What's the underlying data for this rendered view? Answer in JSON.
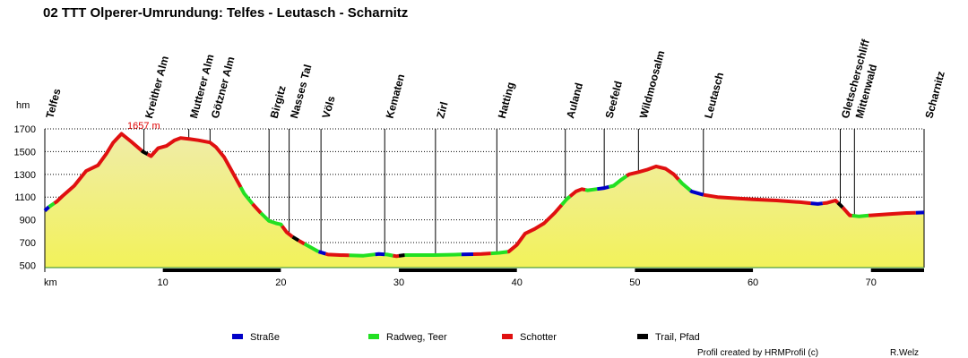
{
  "title": "02 TTT Olperer-Umrundung: Telfes - Leutasch - Scharnitz",
  "credit": "Profil created by HRMProfil (c)",
  "author": "R.Welz",
  "chart_data": {
    "type": "area",
    "ylabel": "hm",
    "xlabel": "km",
    "xlim": [
      0,
      74.5
    ],
    "ylim": [
      480,
      1700
    ],
    "y_ticks": [
      500,
      700,
      900,
      1100,
      1300,
      1500,
      1700
    ],
    "y_grid": [
      700,
      900,
      1100,
      1300,
      1500,
      1700
    ],
    "x_ticks": [
      10,
      20,
      30,
      40,
      50,
      60,
      70
    ],
    "peak_label": "1657 m",
    "peak": {
      "x": 6.5,
      "y": 1657
    },
    "waypoints": [
      {
        "name": "Telfes",
        "x": 0
      },
      {
        "name": "Kreither Alm",
        "x": 8.4
      },
      {
        "name": "Mutterer Alm",
        "x": 12.2
      },
      {
        "name": "Götzner Alm",
        "x": 14.0
      },
      {
        "name": "Birgitz",
        "x": 19.0
      },
      {
        "name": "Nasses Tal",
        "x": 20.7
      },
      {
        "name": "Völs",
        "x": 23.4
      },
      {
        "name": "Kematen",
        "x": 28.8
      },
      {
        "name": "Zirl",
        "x": 33.1
      },
      {
        "name": "Hatting",
        "x": 38.3
      },
      {
        "name": "Auland",
        "x": 44.1
      },
      {
        "name": "Seefeld",
        "x": 47.4
      },
      {
        "name": "Wildmoosalm",
        "x": 50.3
      },
      {
        "name": "Leutasch",
        "x": 55.8
      },
      {
        "name": "Gletscherschliff",
        "x": 67.4
      },
      {
        "name": "Mittenwald",
        "x": 68.6
      },
      {
        "name": "Scharnitz",
        "x": 74.5
      }
    ],
    "profile": [
      [
        0,
        980
      ],
      [
        0.3,
        1010
      ],
      [
        1,
        1060
      ],
      [
        1.5,
        1110
      ],
      [
        2.5,
        1200
      ],
      [
        3.5,
        1330
      ],
      [
        4.5,
        1380
      ],
      [
        5.2,
        1480
      ],
      [
        5.8,
        1580
      ],
      [
        6.5,
        1657
      ],
      [
        7.3,
        1590
      ],
      [
        8.3,
        1500
      ],
      [
        9.0,
        1460
      ],
      [
        9.6,
        1530
      ],
      [
        10.3,
        1550
      ],
      [
        11.0,
        1600
      ],
      [
        11.5,
        1620
      ],
      [
        12.3,
        1610
      ],
      [
        13.0,
        1600
      ],
      [
        14.0,
        1580
      ],
      [
        14.5,
        1540
      ],
      [
        15.2,
        1450
      ],
      [
        16.0,
        1300
      ],
      [
        16.9,
        1130
      ],
      [
        17.6,
        1040
      ],
      [
        18.3,
        960
      ],
      [
        19.0,
        890
      ],
      [
        19.6,
        870
      ],
      [
        20.0,
        860
      ],
      [
        20.5,
        790
      ],
      [
        21.0,
        750
      ],
      [
        21.8,
        700
      ],
      [
        22.5,
        660
      ],
      [
        23.2,
        620
      ],
      [
        24.0,
        595
      ],
      [
        25.0,
        590
      ],
      [
        27.0,
        585
      ],
      [
        28.3,
        600
      ],
      [
        29.0,
        595
      ],
      [
        29.8,
        580
      ],
      [
        30.5,
        590
      ],
      [
        33.0,
        590
      ],
      [
        35.0,
        595
      ],
      [
        37.0,
        600
      ],
      [
        38.5,
        610
      ],
      [
        39.3,
        620
      ],
      [
        40.0,
        680
      ],
      [
        40.7,
        780
      ],
      [
        41.5,
        820
      ],
      [
        42.3,
        870
      ],
      [
        43.2,
        960
      ],
      [
        44.2,
        1080
      ],
      [
        45.0,
        1150
      ],
      [
        45.5,
        1170
      ],
      [
        46.0,
        1160
      ],
      [
        47.4,
        1180
      ],
      [
        48.2,
        1200
      ],
      [
        48.8,
        1250
      ],
      [
        49.5,
        1300
      ],
      [
        50.3,
        1320
      ],
      [
        51.0,
        1340
      ],
      [
        51.8,
        1370
      ],
      [
        52.6,
        1350
      ],
      [
        53.3,
        1300
      ],
      [
        54.0,
        1220
      ],
      [
        54.8,
        1150
      ],
      [
        55.8,
        1120
      ],
      [
        57.0,
        1100
      ],
      [
        58.5,
        1090
      ],
      [
        60.0,
        1080
      ],
      [
        62.0,
        1070
      ],
      [
        64.0,
        1055
      ],
      [
        65.5,
        1040
      ],
      [
        66.3,
        1050
      ],
      [
        67.0,
        1070
      ],
      [
        67.6,
        1010
      ],
      [
        68.2,
        940
      ],
      [
        69.0,
        930
      ],
      [
        70.0,
        940
      ],
      [
        71.5,
        950
      ],
      [
        73.0,
        960
      ],
      [
        74.5,
        965
      ]
    ],
    "surface_segments": [
      {
        "from": 0,
        "to": 0.35,
        "type": "Straße"
      },
      {
        "from": 0.35,
        "to": 0.8,
        "type": "Radweg, Teer"
      },
      {
        "from": 0.8,
        "to": 8.2,
        "type": "Schotter"
      },
      {
        "from": 8.2,
        "to": 8.7,
        "type": "Trail, Pfad"
      },
      {
        "from": 8.7,
        "to": 16.6,
        "type": "Schotter"
      },
      {
        "from": 16.6,
        "to": 17.6,
        "type": "Radweg, Teer"
      },
      {
        "from": 17.6,
        "to": 18.3,
        "type": "Schotter"
      },
      {
        "from": 18.3,
        "to": 20.1,
        "type": "Radweg, Teer"
      },
      {
        "from": 20.1,
        "to": 21.0,
        "type": "Schotter"
      },
      {
        "from": 21.0,
        "to": 21.5,
        "type": "Trail, Pfad"
      },
      {
        "from": 21.5,
        "to": 22.0,
        "type": "Schotter"
      },
      {
        "from": 22.0,
        "to": 23.2,
        "type": "Radweg, Teer"
      },
      {
        "from": 23.2,
        "to": 23.8,
        "type": "Straße"
      },
      {
        "from": 23.8,
        "to": 25.8,
        "type": "Schotter"
      },
      {
        "from": 25.8,
        "to": 28.0,
        "type": "Radweg, Teer"
      },
      {
        "from": 28.0,
        "to": 28.8,
        "type": "Straße"
      },
      {
        "from": 28.8,
        "to": 29.5,
        "type": "Radweg, Teer"
      },
      {
        "from": 29.5,
        "to": 30.0,
        "type": "Schotter"
      },
      {
        "from": 30.0,
        "to": 30.5,
        "type": "Trail, Pfad"
      },
      {
        "from": 30.5,
        "to": 35.3,
        "type": "Radweg, Teer"
      },
      {
        "from": 35.3,
        "to": 36.3,
        "type": "Straße"
      },
      {
        "from": 36.3,
        "to": 37.8,
        "type": "Schotter"
      },
      {
        "from": 37.8,
        "to": 39.2,
        "type": "Radweg, Teer"
      },
      {
        "from": 39.2,
        "to": 43.8,
        "type": "Schotter"
      },
      {
        "from": 43.8,
        "to": 44.5,
        "type": "Radweg, Teer"
      },
      {
        "from": 44.5,
        "to": 45.8,
        "type": "Schotter"
      },
      {
        "from": 45.8,
        "to": 46.8,
        "type": "Radweg, Teer"
      },
      {
        "from": 46.8,
        "to": 47.8,
        "type": "Straße"
      },
      {
        "from": 47.8,
        "to": 49.3,
        "type": "Radweg, Teer"
      },
      {
        "from": 49.3,
        "to": 53.7,
        "type": "Schotter"
      },
      {
        "from": 53.7,
        "to": 54.7,
        "type": "Radweg, Teer"
      },
      {
        "from": 54.7,
        "to": 55.8,
        "type": "Straße"
      },
      {
        "from": 55.8,
        "to": 64.9,
        "type": "Schotter"
      },
      {
        "from": 64.9,
        "to": 65.9,
        "type": "Straße"
      },
      {
        "from": 65.9,
        "to": 67.2,
        "type": "Schotter"
      },
      {
        "from": 67.2,
        "to": 67.6,
        "type": "Trail, Pfad"
      },
      {
        "from": 67.6,
        "to": 68.4,
        "type": "Schotter"
      },
      {
        "from": 68.4,
        "to": 69.8,
        "type": "Radweg, Teer"
      },
      {
        "from": 69.8,
        "to": 73.8,
        "type": "Schotter"
      },
      {
        "from": 73.8,
        "to": 74.5,
        "type": "Straße"
      }
    ],
    "legend": [
      {
        "label": "Straße",
        "color": "#0000c8"
      },
      {
        "label": "Radweg, Teer",
        "color": "#22e022"
      },
      {
        "label": "Schotter",
        "color": "#e01010"
      },
      {
        "label": "Trail, Pfad",
        "color": "#000000"
      }
    ],
    "colors": {
      "fill_top": "#f0eca8",
      "fill_bottom": "#f2f25a",
      "axis_bar": "#000000",
      "ground": "#2a8a2a"
    }
  }
}
